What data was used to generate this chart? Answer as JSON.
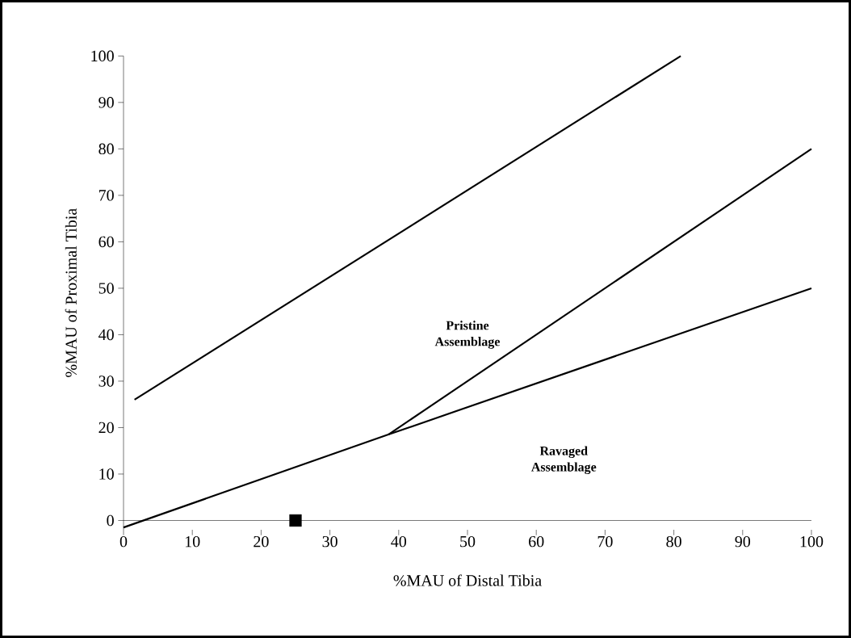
{
  "chart_data": {
    "type": "line",
    "xlabel": "%MAU of Distal Tibia",
    "ylabel": "%MAU of Proximal Tibia",
    "xlim": [
      0,
      100
    ],
    "ylim": [
      -2,
      100
    ],
    "xticks": [
      0,
      10,
      20,
      30,
      40,
      50,
      60,
      70,
      80,
      90,
      100
    ],
    "yticks": [
      0,
      10,
      20,
      30,
      40,
      50,
      60,
      70,
      80,
      90,
      100
    ],
    "marker": "none",
    "line_style": "solid",
    "series": [
      {
        "color": "#000000",
        "x": [
          1.6,
          81
        ],
        "values": [
          26,
          100
        ]
      },
      {
        "color": "#000000",
        "x": [
          38.5,
          100
        ],
        "values": [
          18.5,
          80
        ]
      },
      {
        "color": "#000000",
        "x": [
          0,
          38.5,
          100
        ],
        "values": [
          -1.5,
          18.5,
          50
        ]
      },
      {
        "type": "scatter",
        "marker": "square",
        "color": "#000000",
        "x": [
          25
        ],
        "values": [
          0
        ]
      }
    ],
    "annotations": [
      "Pristine Assemblage",
      "Ravaged Assemblage"
    ]
  }
}
